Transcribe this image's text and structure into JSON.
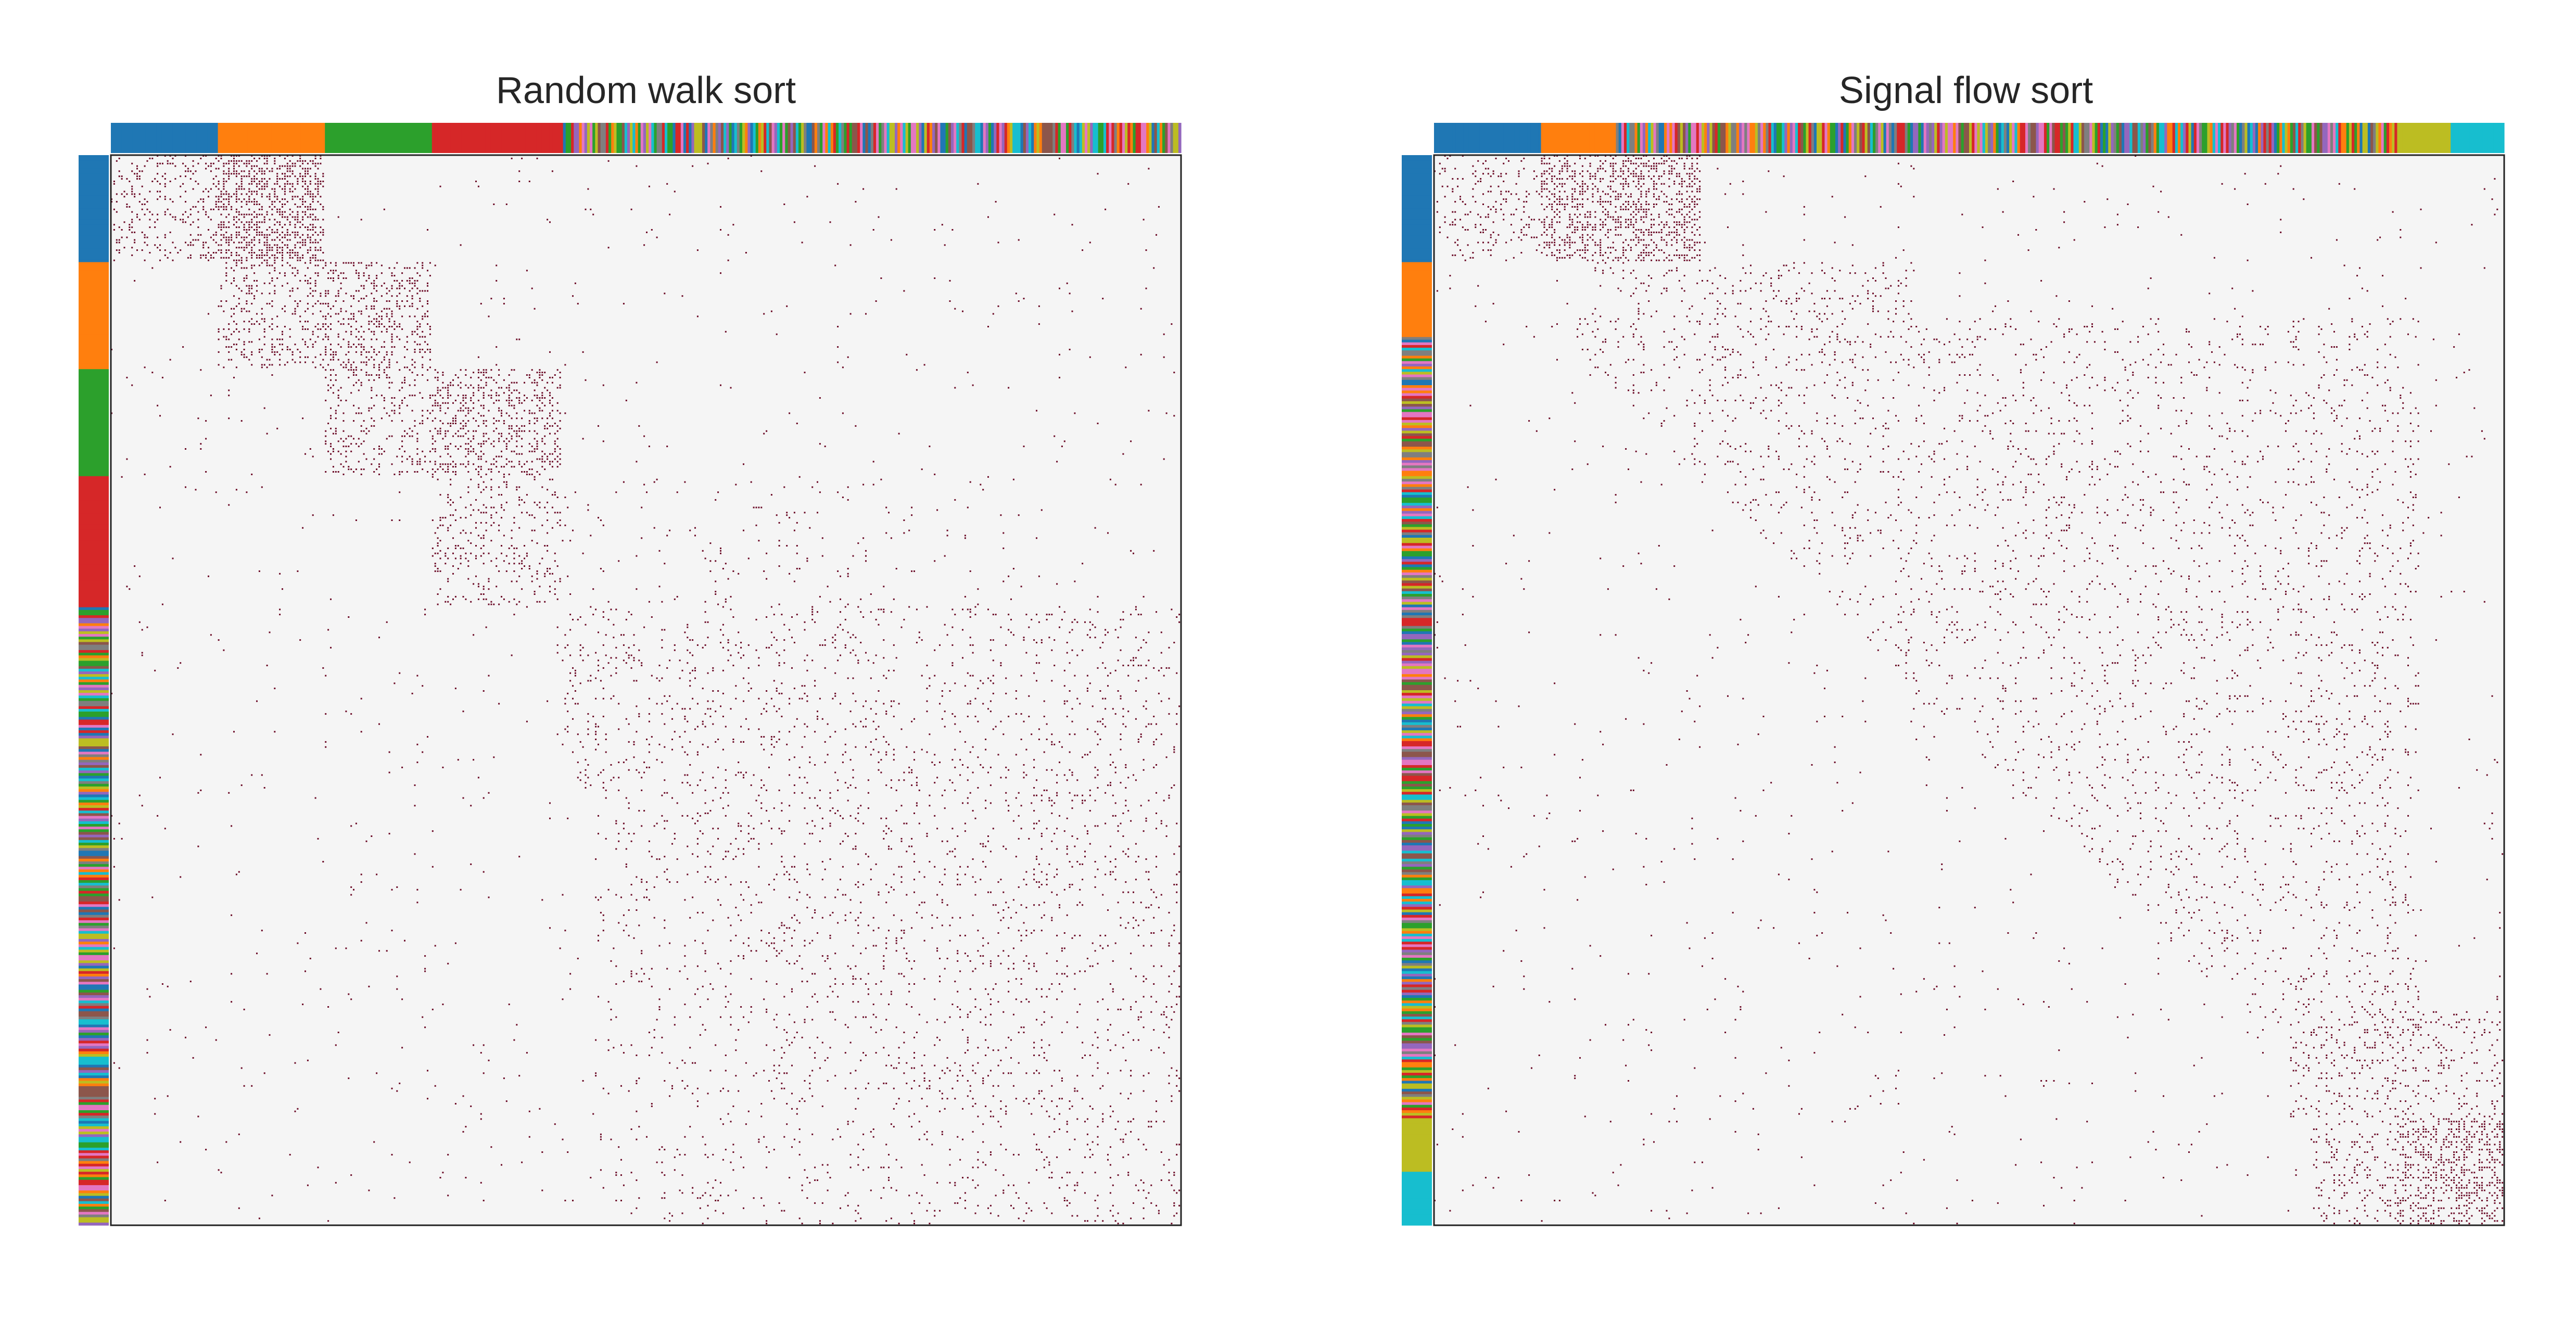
{
  "chart_data": [
    {
      "type": "heatmap",
      "title": "Random walk sort",
      "grid": false,
      "legend": "none",
      "marker_color": "#6b0a26",
      "background_color": "#f5f5f5",
      "n_nodes": 1000,
      "block_order": [
        "blue",
        "orange",
        "green",
        "red",
        "mixed"
      ],
      "row_annotation_segments": [
        {
          "label": "blue",
          "fraction": 0.1
        },
        {
          "label": "orange",
          "fraction": 0.1
        },
        {
          "label": "green",
          "fraction": 0.1
        },
        {
          "label": "red",
          "fraction": 0.12
        },
        {
          "label": "mixed",
          "fraction": 0.58
        }
      ]
    },
    {
      "type": "heatmap",
      "title": "Signal flow sort",
      "grid": false,
      "legend": "none",
      "marker_color": "#6b0a26",
      "background_color": "#f5f5f5",
      "n_nodes": 1000,
      "block_order": [
        "blue",
        "orange",
        "mixed",
        "olive",
        "cyan"
      ],
      "row_annotation_segments": [
        {
          "label": "blue",
          "fraction": 0.1
        },
        {
          "label": "orange",
          "fraction": 0.07
        },
        {
          "label": "mixed",
          "fraction": 0.73
        },
        {
          "label": "olive",
          "fraction": 0.05
        },
        {
          "label": "cyan",
          "fraction": 0.05
        }
      ]
    }
  ],
  "palette": {
    "blue": "#1f77b4",
    "orange": "#ff7f0e",
    "green": "#2ca02c",
    "red": "#d62728",
    "purple": "#9467bd",
    "brown": "#8c564b",
    "pink": "#e377c2",
    "gray": "#7f7f7f",
    "olive": "#bcbd22",
    "cyan": "#17becf"
  }
}
